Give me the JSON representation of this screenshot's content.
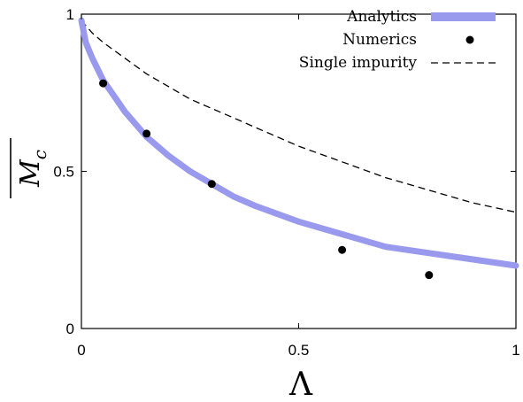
{
  "chart_data": {
    "type": "line",
    "xlabel": "Λ",
    "ylabel": "M_c",
    "xlim": [
      0,
      1
    ],
    "ylim": [
      0,
      1
    ],
    "x_ticks": [
      "0",
      "0.5",
      "1"
    ],
    "y_ticks": [
      "0",
      "0.5",
      "1"
    ],
    "legend_position": "top-right",
    "series": [
      {
        "name": "Analytics",
        "kind": "thick-line",
        "color": "#9999ee",
        "x": [
          0,
          0.01,
          0.025,
          0.05,
          0.075,
          0.1,
          0.15,
          0.2,
          0.25,
          0.3,
          0.35,
          0.4,
          0.5,
          0.6,
          0.7,
          0.8,
          0.9,
          1.0
        ],
        "y": [
          0.98,
          0.91,
          0.86,
          0.79,
          0.74,
          0.69,
          0.61,
          0.55,
          0.5,
          0.46,
          0.42,
          0.39,
          0.34,
          0.3,
          0.26,
          0.24,
          0.22,
          0.2
        ]
      },
      {
        "name": "Numerics",
        "kind": "points",
        "color": "#000000",
        "x": [
          0.05,
          0.15,
          0.3,
          0.6,
          0.8
        ],
        "y": [
          0.78,
          0.62,
          0.46,
          0.25,
          0.17
        ]
      },
      {
        "name": "Single impurity",
        "kind": "dashed-line",
        "color": "#000000",
        "x": [
          0,
          0.025,
          0.05,
          0.1,
          0.15,
          0.2,
          0.25,
          0.3,
          0.35,
          0.4,
          0.5,
          0.6,
          0.7,
          0.8,
          0.9,
          1.0
        ],
        "y": [
          0.98,
          0.94,
          0.91,
          0.86,
          0.81,
          0.77,
          0.73,
          0.7,
          0.67,
          0.64,
          0.58,
          0.53,
          0.48,
          0.44,
          0.4,
          0.37
        ]
      }
    ]
  }
}
